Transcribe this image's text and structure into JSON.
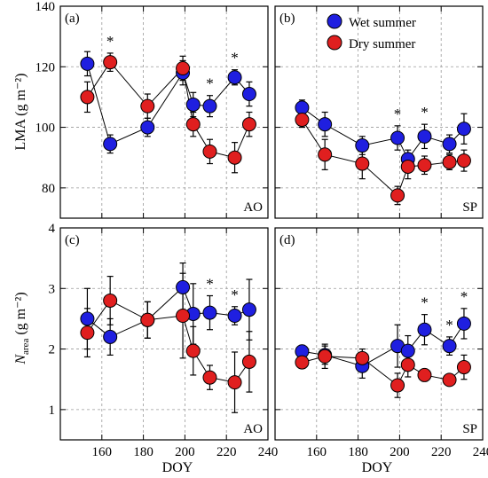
{
  "figure": {
    "legend": {
      "placement": "top-right of panel (b)",
      "entries": [
        {
          "label": "Wet summer",
          "color": "#1f1fe0"
        },
        {
          "label": "Dry summer",
          "color": "#e01f1f"
        }
      ]
    },
    "xlabel": "DOY",
    "ylabel_top": "LMA (g m⁻²)",
    "ylabel_bottom_main": "N",
    "ylabel_bottom_sub": "area",
    "ylabel_bottom_unit": " (g m⁻²)",
    "colors": {
      "wet": "#1f1fe0",
      "dry": "#e01f1f",
      "grid": "#9a9a9a"
    }
  },
  "chart_data": [
    {
      "type": "scatter",
      "panel": "(a)",
      "site": "AO",
      "xlim": [
        140,
        240
      ],
      "ylim": [
        70,
        140
      ],
      "xticks": [
        160,
        180,
        200,
        220,
        240
      ],
      "yticks": [
        80,
        100,
        120,
        140
      ],
      "grid": true,
      "series": [
        {
          "name": "Wet summer",
          "x": [
            153,
            164,
            182,
            199,
            204,
            212,
            224,
            231
          ],
          "y": [
            121,
            94.5,
            100,
            118,
            107.5,
            107,
            116.5,
            111
          ],
          "err": [
            4,
            3,
            3,
            4,
            4,
            3.5,
            2.5,
            4
          ]
        },
        {
          "name": "Dry summer",
          "x": [
            153,
            164,
            182,
            199,
            204,
            212,
            224,
            231
          ],
          "y": [
            110,
            121.5,
            107,
            119.5,
            101,
            92,
            90,
            101
          ],
          "err": [
            5,
            3,
            4,
            4,
            4,
            4,
            5,
            4
          ]
        }
      ],
      "significance": [
        164,
        212,
        224
      ]
    },
    {
      "type": "scatter",
      "panel": "(b)",
      "site": "SP",
      "xlim": [
        140,
        240
      ],
      "ylim": [
        70,
        140
      ],
      "xticks": [
        160,
        180,
        200,
        220,
        240
      ],
      "yticks": [
        80,
        100,
        120,
        140
      ],
      "grid": true,
      "series": [
        {
          "name": "Wet summer",
          "x": [
            153,
            164,
            182,
            199,
            204,
            212,
            224,
            231
          ],
          "y": [
            106.5,
            101,
            94,
            96.5,
            89.5,
            97,
            94.5,
            99.5
          ],
          "err": [
            2.5,
            4,
            3,
            4,
            3,
            4,
            3,
            5
          ]
        },
        {
          "name": "Dry summer",
          "x": [
            153,
            164,
            182,
            199,
            204,
            212,
            224,
            231
          ],
          "y": [
            102.5,
            91,
            88,
            77.5,
            87,
            87.5,
            88.5,
            89
          ],
          "err": [
            2.5,
            5,
            5,
            3,
            4,
            3,
            2.5,
            3.5
          ]
        }
      ],
      "significance": [
        199,
        212
      ]
    },
    {
      "type": "scatter",
      "panel": "(c)",
      "site": "AO",
      "xlim": [
        140,
        240
      ],
      "ylim": [
        0.5,
        4
      ],
      "xticks": [
        160,
        180,
        200,
        220,
        240
      ],
      "yticks": [
        1,
        2,
        3,
        4
      ],
      "grid": true,
      "series": [
        {
          "name": "Wet summer",
          "x": [
            153,
            164,
            182,
            199,
            204,
            212,
            224,
            231
          ],
          "y": [
            2.5,
            2.2,
            2.48,
            3.02,
            2.58,
            2.6,
            2.55,
            2.65
          ],
          "err": [
            0.5,
            0.3,
            0.3,
            0.4,
            0.5,
            0.28,
            0.15,
            0.5
          ]
        },
        {
          "name": "Dry summer",
          "x": [
            153,
            164,
            182,
            199,
            204,
            212,
            224,
            231
          ],
          "y": [
            2.27,
            2.8,
            2.48,
            2.55,
            1.97,
            1.53,
            1.45,
            1.79
          ],
          "err": [
            0.4,
            0.4,
            0.3,
            0.7,
            0.4,
            0.2,
            0.5,
            0.5
          ]
        }
      ],
      "significance": [
        212,
        224
      ]
    },
    {
      "type": "scatter",
      "panel": "(d)",
      "site": "SP",
      "xlim": [
        140,
        240
      ],
      "ylim": [
        0.5,
        4
      ],
      "xticks": [
        160,
        180,
        200,
        220,
        240
      ],
      "yticks": [
        1,
        2,
        3,
        4
      ],
      "grid": true,
      "series": [
        {
          "name": "Wet summer",
          "x": [
            153,
            164,
            182,
            199,
            204,
            212,
            224,
            231
          ],
          "y": [
            1.96,
            1.9,
            1.72,
            2.05,
            1.97,
            2.32,
            2.05,
            2.42
          ],
          "err": [
            0.1,
            0.15,
            0.2,
            0.35,
            0.25,
            0.25,
            0.15,
            0.25
          ]
        },
        {
          "name": "Dry summer",
          "x": [
            153,
            164,
            182,
            199,
            204,
            212,
            224,
            231
          ],
          "y": [
            1.78,
            1.88,
            1.85,
            1.4,
            1.74,
            1.57,
            1.49,
            1.7
          ],
          "err": [
            0.1,
            0.2,
            0.15,
            0.2,
            0.2,
            0.1,
            0.08,
            0.2
          ]
        }
      ],
      "significance": [
        212,
        224,
        231
      ]
    }
  ]
}
